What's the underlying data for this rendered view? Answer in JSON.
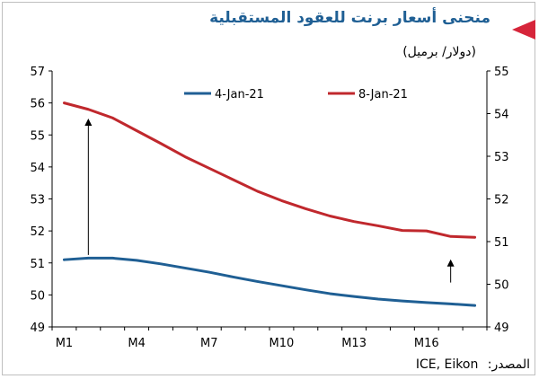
{
  "header": {
    "title": "منحنى أسعار برنت للعقود المستقبلية",
    "subtitle": "(دولار/ برميل)"
  },
  "footer": {
    "source_label": "المصدر:",
    "source_value": "ICE, Eikon"
  },
  "colors": {
    "series_blue": "#1f5f94",
    "series_red": "#c0282d",
    "accent": "#d6253a"
  },
  "chart_data": {
    "type": "line",
    "title": "منحنى أسعار برنت للعقود المستقبلية",
    "ylabel": "(دولار/ برميل)",
    "x": [
      "M1",
      "M2",
      "M3",
      "M4",
      "M5",
      "M6",
      "M7",
      "M8",
      "M9",
      "M10",
      "M11",
      "M12",
      "M13",
      "M14",
      "M15",
      "M16",
      "M17",
      "M18"
    ],
    "x_tick_labels": [
      "M1",
      "M4",
      "M7",
      "M10",
      "M13",
      "M16"
    ],
    "y_left_lim": [
      49,
      57
    ],
    "y_left_ticks": [
      49,
      50,
      51,
      52,
      53,
      54,
      55,
      56,
      57
    ],
    "y_right_lim": [
      49,
      55
    ],
    "y_right_ticks": [
      49,
      50,
      51,
      52,
      53,
      54,
      55
    ],
    "legend_position": "top",
    "grid": false,
    "series": [
      {
        "name": "4-Jan-21",
        "axis": "left",
        "color": "#1f5f94",
        "values": [
          51.1,
          51.15,
          51.15,
          51.08,
          50.97,
          50.84,
          50.71,
          50.56,
          50.42,
          50.29,
          50.16,
          50.04,
          49.95,
          49.87,
          49.81,
          49.76,
          49.72,
          49.67
        ]
      },
      {
        "name": "8-Jan-21",
        "axis": "right",
        "color": "#c0282d",
        "values": [
          54.25,
          54.1,
          53.9,
          53.6,
          53.3,
          52.99,
          52.72,
          52.45,
          52.18,
          51.96,
          51.77,
          51.6,
          51.47,
          51.37,
          51.26,
          51.25,
          51.12,
          51.1
        ]
      }
    ],
    "annotations": [
      {
        "type": "arrow",
        "x": "M2",
        "from": 51.25,
        "to": 55.4,
        "axis": "left"
      },
      {
        "type": "arrow",
        "x": "M17",
        "from": 50.04,
        "to": 50.5,
        "axis": "right"
      }
    ]
  }
}
